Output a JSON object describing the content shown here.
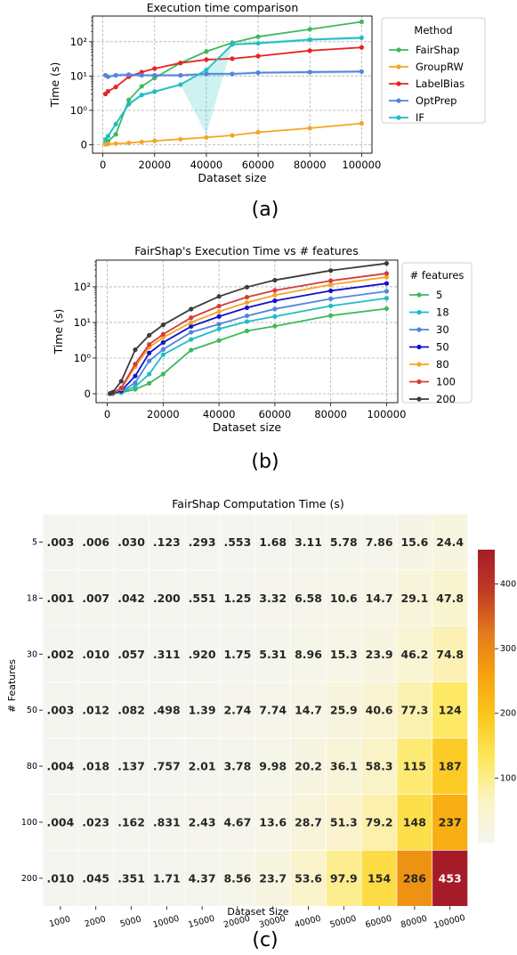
{
  "panels": {
    "a": {
      "caption": "(a)",
      "chart_data": {
        "type": "line",
        "title": "Execution time comparison",
        "xlabel": "Dataset size",
        "ylabel": "Time (s)",
        "yscale": "symlog",
        "xlim": [
          -4000,
          104000
        ],
        "xticks": [
          0,
          20000,
          40000,
          60000,
          80000,
          100000
        ],
        "yticks": [
          {
            "v": 0,
            "label": "0"
          },
          {
            "v": 1,
            "label": "10⁰"
          },
          {
            "v": 10,
            "label": "10¹"
          },
          {
            "v": 100,
            "label": "10²"
          }
        ],
        "grid": true,
        "legend_title": "Method",
        "legend_position": "top-right-outside",
        "x": [
          1000,
          2000,
          5000,
          10000,
          15000,
          20000,
          30000,
          40000,
          50000,
          60000,
          80000,
          100000
        ],
        "series": [
          {
            "name": "FairShap",
            "color": "#3dba5e",
            "values": [
              0.05,
              0.1,
              0.3,
              2.0,
              5.0,
              8.8,
              24,
              52,
              93,
              140,
              230,
              380
            ]
          },
          {
            "name": "GroupRW",
            "color": "#f5a623",
            "values": [
              0.01,
              0.02,
              0.03,
              0.05,
              0.08,
              0.11,
              0.16,
              0.21,
              0.27,
              0.36,
              0.48,
              0.62
            ]
          },
          {
            "name": "LabelBias",
            "color": "#e8241f",
            "values": [
              3.0,
              3.6,
              4.8,
              9.5,
              13,
              16.5,
              24,
              30,
              32,
              38,
              55,
              68
            ]
          },
          {
            "name": "OptPrep",
            "color": "#4f86dc",
            "values": [
              10.5,
              9.5,
              10.5,
              11,
              10.5,
              10.5,
              10.5,
              11.5,
              11.5,
              12.5,
              13,
              13.5
            ],
            "band": true
          },
          {
            "name": "IF",
            "color": "#1fbdc4",
            "values": [
              0.15,
              0.25,
              0.6,
              1.5,
              2.8,
              3.5,
              5.6,
              15,
              83,
              90,
              115,
              130
            ],
            "band": true
          }
        ]
      }
    },
    "b": {
      "caption": "(b)",
      "chart_data": {
        "type": "line",
        "title": "FairShap's Execution Time vs # features",
        "xlabel": "Dataset size",
        "ylabel": "Time (s)",
        "yscale": "symlog",
        "xlim": [
          -4000,
          104000
        ],
        "xticks": [
          0,
          20000,
          40000,
          60000,
          80000,
          100000
        ],
        "yticks": [
          {
            "v": 0,
            "label": "0"
          },
          {
            "v": 1,
            "label": "10⁰"
          },
          {
            "v": 10,
            "label": "10¹"
          },
          {
            "v": 100,
            "label": "10²"
          }
        ],
        "grid": true,
        "legend_title": "# features",
        "legend_position": "top-right-outside",
        "x": [
          1000,
          2000,
          5000,
          10000,
          15000,
          20000,
          30000,
          40000,
          50000,
          60000,
          80000,
          100000
        ],
        "series": [
          {
            "name": "5",
            "color": "#3dba5e",
            "values": [
              0.003,
              0.006,
              0.03,
              0.123,
              0.293,
              0.553,
              1.68,
              3.11,
              5.78,
              7.86,
              15.6,
              24.4
            ]
          },
          {
            "name": "18",
            "color": "#1fbdc4",
            "values": [
              0.001,
              0.007,
              0.042,
              0.2,
              0.551,
              1.25,
              3.32,
              6.58,
              10.6,
              14.7,
              29.1,
              47.8
            ]
          },
          {
            "name": "30",
            "color": "#4f86dc",
            "values": [
              0.002,
              0.01,
              0.057,
              0.311,
              0.92,
              1.75,
              5.31,
              8.96,
              15.3,
              23.9,
              46.2,
              74.8
            ]
          },
          {
            "name": "50",
            "color": "#1010d0",
            "values": [
              0.003,
              0.012,
              0.082,
              0.498,
              1.39,
              2.74,
              7.74,
              14.7,
              25.9,
              40.6,
              77.3,
              124
            ]
          },
          {
            "name": "80",
            "color": "#f5a623",
            "values": [
              0.004,
              0.018,
              0.137,
              0.757,
              2.01,
              3.78,
              9.98,
              20.2,
              36.1,
              58.3,
              115,
              187
            ]
          },
          {
            "name": "100",
            "color": "#d63b3b",
            "values": [
              0.004,
              0.023,
              0.162,
              0.831,
              2.43,
              4.67,
              13.6,
              28.7,
              51.3,
              79.2,
              148,
              237
            ]
          },
          {
            "name": "200",
            "color": "#3c3c3c",
            "values": [
              0.01,
              0.045,
              0.351,
              1.71,
              4.37,
              8.56,
              23.7,
              53.6,
              97.9,
              154,
              286,
              453
            ]
          }
        ]
      }
    },
    "c": {
      "caption": "(c)",
      "chart_data": {
        "type": "heatmap",
        "title": "FairShap Computation Time (s)",
        "xlabel": "Dataset Size",
        "ylabel": "# Features",
        "colorbar_ticks": [
          100,
          200,
          300,
          400
        ],
        "vmin": 0.001,
        "vmax": 453,
        "x_labels": [
          "1000",
          "2000",
          "5000",
          "10000",
          "15000",
          "20000",
          "30000",
          "40000",
          "50000",
          "60000",
          "80000",
          "100000"
        ],
        "y_labels": [
          "5",
          "18",
          "30",
          "50",
          "80",
          "100",
          "200"
        ],
        "values": [
          [
            0.003,
            0.006,
            0.03,
            0.123,
            0.293,
            0.553,
            1.68,
            3.11,
            5.78,
            7.86,
            15.6,
            24.4
          ],
          [
            0.001,
            0.007,
            0.042,
            0.2,
            0.551,
            1.25,
            3.32,
            6.58,
            10.6,
            14.7,
            29.1,
            47.8
          ],
          [
            0.002,
            0.01,
            0.057,
            0.311,
            0.92,
            1.75,
            5.31,
            8.96,
            15.3,
            23.9,
            46.2,
            74.8
          ],
          [
            0.003,
            0.012,
            0.082,
            0.498,
            1.39,
            2.74,
            7.74,
            14.7,
            25.9,
            40.6,
            77.3,
            124
          ],
          [
            0.004,
            0.018,
            0.137,
            0.757,
            2.01,
            3.78,
            9.98,
            20.2,
            36.1,
            58.3,
            115,
            187
          ],
          [
            0.004,
            0.023,
            0.162,
            0.831,
            2.43,
            4.67,
            13.6,
            28.7,
            51.3,
            79.2,
            148,
            237
          ],
          [
            0.01,
            0.045,
            0.351,
            1.71,
            4.37,
            8.56,
            23.7,
            53.6,
            97.9,
            154,
            286,
            453
          ]
        ],
        "labels": [
          [
            ".003",
            ".006",
            ".030",
            ".123",
            ".293",
            ".553",
            "1.68",
            "3.11",
            "5.78",
            "7.86",
            "15.6",
            "24.4"
          ],
          [
            ".001",
            ".007",
            ".042",
            ".200",
            ".551",
            "1.25",
            "3.32",
            "6.58",
            "10.6",
            "14.7",
            "29.1",
            "47.8"
          ],
          [
            ".002",
            ".010",
            ".057",
            ".311",
            ".920",
            "1.75",
            "5.31",
            "8.96",
            "15.3",
            "23.9",
            "46.2",
            "74.8"
          ],
          [
            ".003",
            ".012",
            ".082",
            ".498",
            "1.39",
            "2.74",
            "7.74",
            "14.7",
            "25.9",
            "40.6",
            "77.3",
            "124"
          ],
          [
            ".004",
            ".018",
            ".137",
            ".757",
            "2.01",
            "3.78",
            "9.98",
            "20.2",
            "36.1",
            "58.3",
            "115",
            "187"
          ],
          [
            ".004",
            ".023",
            ".162",
            ".831",
            "2.43",
            "4.67",
            "13.6",
            "28.7",
            "51.3",
            "79.2",
            "148",
            "237"
          ],
          [
            ".010",
            ".045",
            ".351",
            "1.71",
            "4.37",
            "8.56",
            "23.7",
            "53.6",
            "97.9",
            "154",
            "286",
            "453"
          ]
        ],
        "colormap": [
          "#f5f5f0",
          "#fbf3c4",
          "#fde85d",
          "#fcc71e",
          "#f5a30f",
          "#e47a1c",
          "#c13a24",
          "#a51c28"
        ]
      }
    }
  }
}
